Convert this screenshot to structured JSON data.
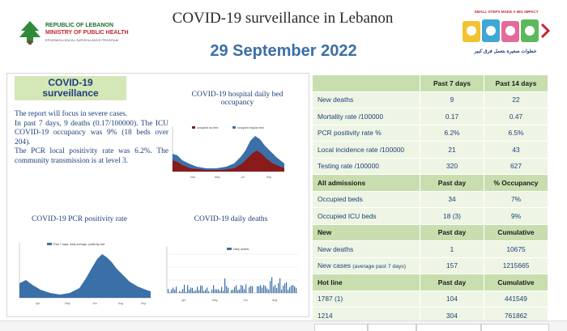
{
  "header": {
    "moh_line1": "REPUBLIC OF LEBANON",
    "moh_line2": "MINISTRY OF PUBLIC HEALTH",
    "moh_line3": "EPIDEMIOLOGICAL SURVEILLANCE PROGRAM",
    "title": "COVID-19 surveillance in Lebanon",
    "date": "29 September 2022",
    "campaign_top": "SMALL STEPS MAKE A BIG IMPACT",
    "campaign_bottom": "خطوات صغيرة بتعمل فرق كبير"
  },
  "summary": {
    "box_title_1": "COVID-19",
    "box_title_2": "surveillance",
    "p1": "The report will focus in severe cases.",
    "p2": "In past 7 days, 9 deaths (0.17/100000). The ICU COVID-19 occupancy was 9% (18 beds over 204).",
    "p3": "The PCR local positivity rate was 6.2%. The community transmission is at level 3."
  },
  "charts": {
    "bed_title": "COVID-19 hospital daily bed occupancy",
    "bed_legend": [
      "occupied icu bed",
      "occupied regular bed"
    ],
    "pcr_title": "COVID-19 PCR positivity rate",
    "pcr_legend": "Past 7 days, daily average, positivity rate",
    "deaths_title": "COVID-19 daily deaths",
    "deaths_legend": "Daily deaths"
  },
  "table": {
    "h1": {
      "c1": "Past 7 days",
      "c2": "Past 14 days"
    },
    "r1": {
      "label": "New deaths",
      "v1": "9",
      "v2": "22"
    },
    "r2": {
      "label": "Mortality rate /100000",
      "v1": "0.17",
      "v2": "0.47"
    },
    "r3": {
      "label": "PCR positivity rate %",
      "v1": "6.2%",
      "v2": "6.5%"
    },
    "r4": {
      "label": "Local incidence rate /100000",
      "v1": "21",
      "v2": "43"
    },
    "r5": {
      "label": "Testing rate /100000",
      "v1": "320",
      "v2": "627"
    },
    "h2": {
      "label": "All admissions",
      "c1": "Past day",
      "c2": "% Occupancy"
    },
    "r6": {
      "label": "Occupied beds",
      "v1": "34",
      "v2": "7%"
    },
    "r7": {
      "label": "Occupied ICU beds",
      "v1": "18 (3)",
      "v2": "9%"
    },
    "h3": {
      "label": "New",
      "c1": "Past day",
      "c2": "Cumulative"
    },
    "r8": {
      "label": "New deaths",
      "v1": "1",
      "v2": "10675"
    },
    "r9": {
      "label": "New cases",
      "label_small": "(average past 7 days)",
      "v1": "157",
      "v2": "1215665"
    },
    "h4": {
      "label": "Hot line",
      "c1": "Past day",
      "c2": "Cumulative"
    },
    "r10": {
      "label": "1787 (1)",
      "v1": "104",
      "v2": "441549"
    },
    "r11": {
      "label": "1214",
      "v1": "304",
      "v2": "761862"
    }
  }
}
